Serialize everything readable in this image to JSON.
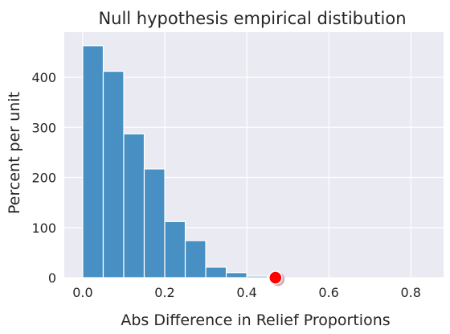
{
  "chart_data": {
    "type": "histogram",
    "title": "Null hypothesis empirical distibution",
    "xlabel": "Abs Difference in Relief Proportions",
    "ylabel": "Percent per unit",
    "xlim": [
      -0.045,
      0.88
    ],
    "ylim": [
      0,
      490
    ],
    "xticks": [
      0.0,
      0.2,
      0.4,
      0.6,
      0.8
    ],
    "xtick_labels": [
      "0.0",
      "0.2",
      "0.4",
      "0.6",
      "0.8"
    ],
    "yticks": [
      0,
      100,
      200,
      300,
      400
    ],
    "ytick_labels": [
      "0",
      "100",
      "200",
      "300",
      "400"
    ],
    "grid": true,
    "bins": [
      {
        "x0": 0.0,
        "x1": 0.05,
        "value": 463
      },
      {
        "x0": 0.05,
        "x1": 0.1,
        "value": 412
      },
      {
        "x0": 0.1,
        "x1": 0.15,
        "value": 287
      },
      {
        "x0": 0.15,
        "x1": 0.2,
        "value": 217
      },
      {
        "x0": 0.2,
        "x1": 0.25,
        "value": 112
      },
      {
        "x0": 0.25,
        "x1": 0.3,
        "value": 74
      },
      {
        "x0": 0.3,
        "x1": 0.35,
        "value": 21
      },
      {
        "x0": 0.35,
        "x1": 0.4,
        "value": 10
      },
      {
        "x0": 0.4,
        "x1": 0.45,
        "value": 3
      }
    ],
    "bar_color": "#3a87bf",
    "background_color": "#eaeaf2",
    "observed_point": {
      "x": 0.47,
      "y": 0,
      "color": "#ff0000"
    }
  }
}
